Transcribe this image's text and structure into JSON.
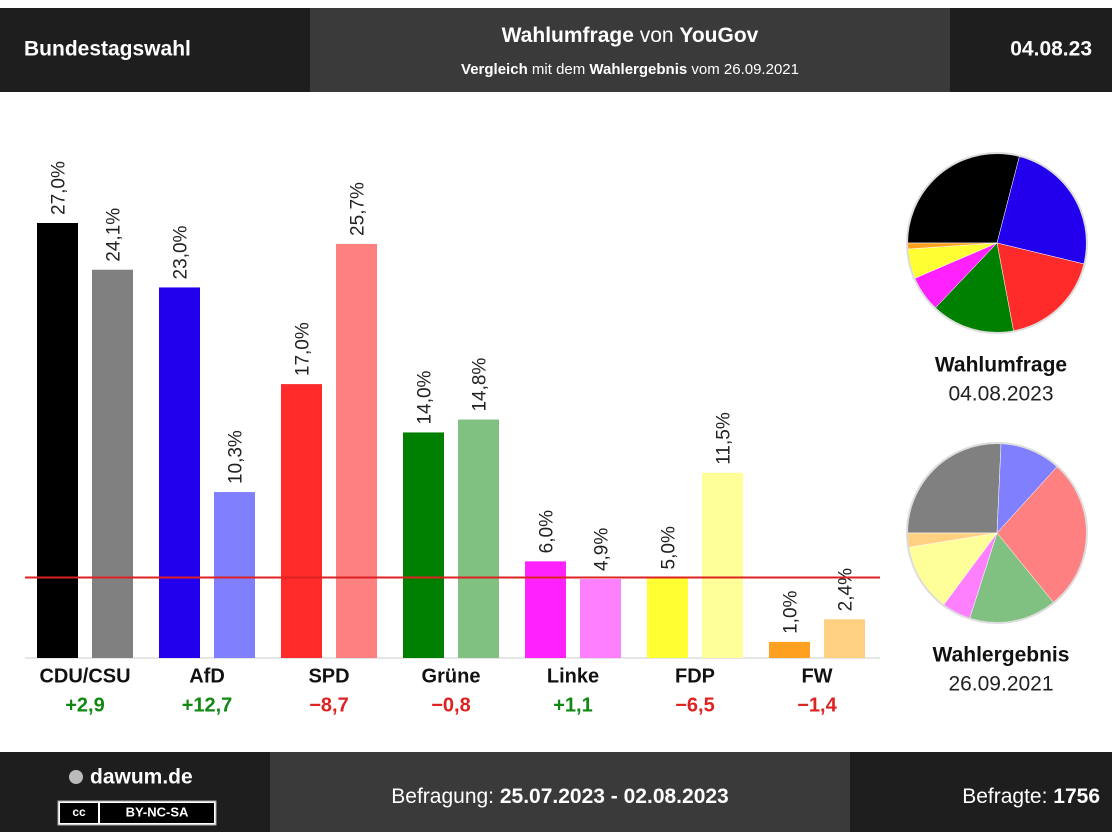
{
  "header": {
    "left": "Bundestagswahl",
    "title_parts": [
      "Wahlumfrage",
      " von ",
      "YouGov"
    ],
    "subtitle_parts": [
      "Vergleich",
      " mit dem ",
      "Wahlergebnis",
      " vom 26.09.2021"
    ],
    "right": "04.08.23"
  },
  "chart_data": {
    "type": "bar",
    "categories": [
      "CDU/CSU",
      "AfD",
      "SPD",
      "Grüne",
      "Linke",
      "FDP",
      "FW"
    ],
    "series": [
      {
        "name": "Wahlumfrage",
        "date": "04.08.2023",
        "colors": [
          "#000000",
          "#2200ee",
          "#ff2a2a",
          "#008000",
          "#ff22ff",
          "#ffff33",
          "#ffa020"
        ],
        "values": [
          27.0,
          23.0,
          17.0,
          14.0,
          6.0,
          5.0,
          1.0
        ],
        "value_labels": [
          "27,0%",
          "23,0%",
          "17,0%",
          "14,0%",
          "6,0%",
          "5,0%",
          "1,0%"
        ]
      },
      {
        "name": "Wahlergebnis",
        "date": "26.09.2021",
        "colors": [
          "#808080",
          "#8080ff",
          "#ff8080",
          "#80c080",
          "#ff80ff",
          "#ffff99",
          "#ffd080"
        ],
        "values": [
          24.1,
          10.3,
          25.7,
          14.8,
          4.9,
          11.5,
          2.4
        ],
        "value_labels": [
          "24,1%",
          "10,3%",
          "25,7%",
          "14,8%",
          "4,9%",
          "11,5%",
          "2,4%"
        ]
      }
    ],
    "differences": [
      2.9,
      12.7,
      -8.7,
      -0.8,
      1.1,
      -6.5,
      -1.4
    ],
    "difference_labels": [
      "+2,9",
      "+12,7",
      "−8,7",
      "−0,8",
      "+1,1",
      "−6,5",
      "−1,4"
    ],
    "threshold": 5,
    "threshold_color": "#dd2222",
    "ylim": [
      0,
      27
    ]
  },
  "footer": {
    "site": "dawum.de",
    "license": "BY-NC-SA",
    "period_label": "Befragung: ",
    "period": "25.07.2023 - 02.08.2023",
    "respondents_label": "Befragte: ",
    "respondents": "1756"
  }
}
